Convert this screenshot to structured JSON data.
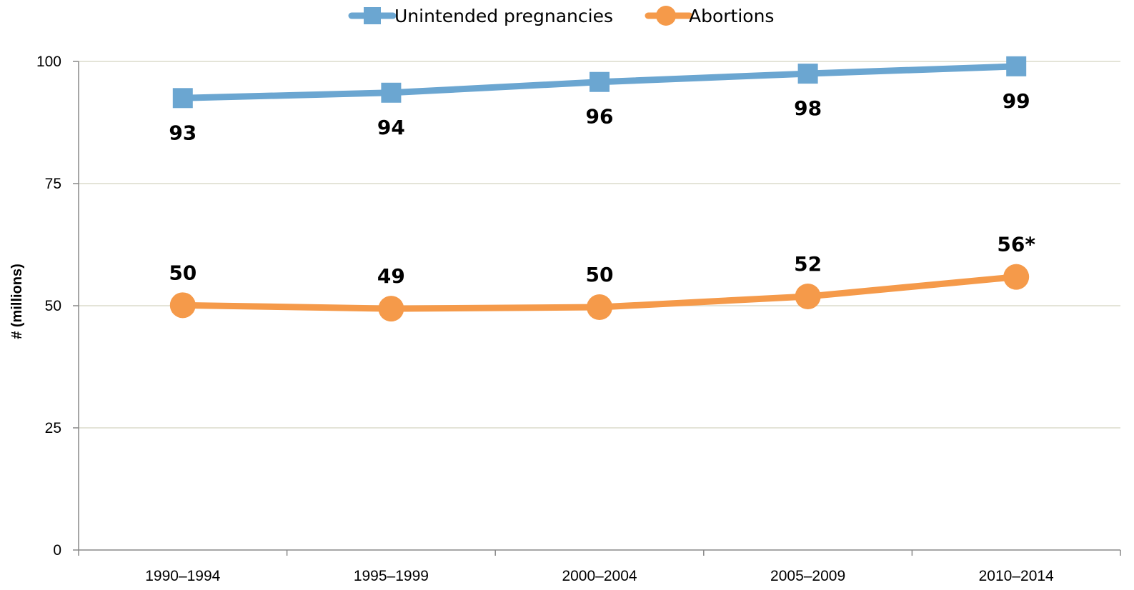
{
  "chart_data": {
    "type": "line",
    "title": "",
    "xlabel": "",
    "ylabel": "# (millions)",
    "ylim": [
      0,
      100
    ],
    "yticks": [
      0,
      25,
      50,
      75,
      100
    ],
    "grid": true,
    "legend_position": "top-center",
    "categories": [
      "1990–1994",
      "1995–1999",
      "2000–2004",
      "2005–2009",
      "2010–2014"
    ],
    "series": [
      {
        "name": "Unintended pregnancies",
        "color": "#6ba6d1",
        "marker": "square",
        "values": [
          92.5,
          93.6,
          95.8,
          97.5,
          99.0
        ],
        "labels": [
          "93",
          "94",
          "96",
          "98",
          "99"
        ],
        "label_position": "below"
      },
      {
        "name": "Abortions",
        "color": "#f59a4a",
        "marker": "circle",
        "values": [
          50.1,
          49.4,
          49.7,
          51.9,
          55.9
        ],
        "labels": [
          "50",
          "49",
          "50",
          "52",
          "56*"
        ],
        "label_position": "above"
      }
    ]
  }
}
